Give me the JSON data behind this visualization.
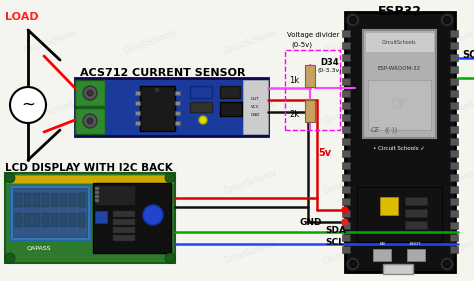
{
  "bg": "#f5f5f0",
  "labels": {
    "load": "LOAD",
    "acs712": "ACS712 CURRENT SENSOR",
    "lcd": "LCD DISPLAY WITH I2C BACK",
    "esp32": "ESP32",
    "voltage_divider": "Voltage divider",
    "v0_5v": "(0-5v)",
    "v0_3v": "(0-3.3v)",
    "r1k": "1k",
    "r2k": "2k",
    "d34": "D34",
    "gnd": "GND",
    "sda": "SDA",
    "scl_bottom": "SCL",
    "scl_right": "SCL",
    "5v": "5v"
  },
  "colors": {
    "load_red": "#ff2222",
    "wire_red": "#dd0000",
    "wire_black": "#111111",
    "wire_pink": "#ff44ff",
    "wire_blue": "#2244ff",
    "wire_green": "#00aa00",
    "vd_box": "#ff00ff",
    "resistor": "#c8a060",
    "esp32_pcb": "#111111",
    "esp32_module": "#b0b0b0",
    "acs_pcb": "#1a3a9c",
    "acs_green": "#2d8a2d",
    "lcd_pcb": "#2d7a2d",
    "lcd_screen": "#3a7aaa",
    "lcd_i2c": "#111111",
    "lcd_cap": "#2244cc",
    "ic_black": "#222222",
    "pin_gray": "#555555",
    "watermark": "#cccccc",
    "bg": "#f5f5f0"
  },
  "layout": {
    "fig_width": 4.74,
    "fig_height": 2.81,
    "dpi": 100
  }
}
